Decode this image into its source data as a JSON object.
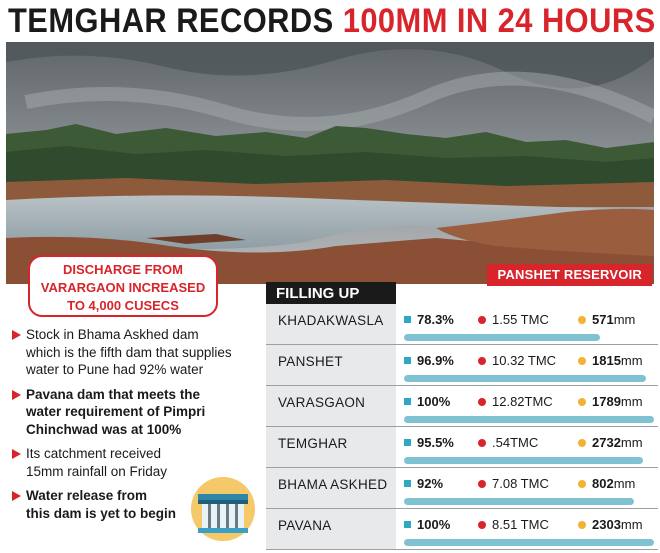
{
  "headline": {
    "part1": "TEMGHAR RECORDS",
    "part2": "100MM IN 24 HOURS"
  },
  "photo_caption": "PANSHET RESERVOIR",
  "callout": {
    "lines": [
      "DISCHARGE FROM",
      "VARARGAON INCREASED",
      "TO 4,000 CUSECS"
    ]
  },
  "bullets": [
    {
      "bold": false,
      "lines": [
        "Stock in Bhama Askhed dam",
        "which is the fifth dam that supplies",
        "water to Pune had 92% water"
      ]
    },
    {
      "bold": true,
      "lines": [
        "Pavana dam that meets the",
        "water requirement of Pimpri",
        "Chinchwad was at 100%"
      ]
    },
    {
      "bold": false,
      "lines": [
        "Its catchment received",
        "15mm rainfall on Friday"
      ]
    },
    {
      "bold": true,
      "lines": [
        "Water release from",
        "this dam is yet to begin"
      ]
    }
  ],
  "table": {
    "title": "FILLING UP",
    "rows": [
      {
        "name": "KHADAKWASLA",
        "percent": "78.3%",
        "percent_value": 78.3,
        "tmc": "1.55 TMC",
        "mm_value": "571",
        "mm_unit": "mm"
      },
      {
        "name": "PANSHET",
        "percent": "96.9%",
        "percent_value": 96.9,
        "tmc": "10.32 TMC",
        "mm_value": "1815",
        "mm_unit": "mm"
      },
      {
        "name": "VARASGAON",
        "percent": "100%",
        "percent_value": 100,
        "tmc": "12.82TMC",
        "mm_value": "1789",
        "mm_unit": "mm"
      },
      {
        "name": "TEMGHAR",
        "percent": "95.5%",
        "percent_value": 95.5,
        "tmc": ".54TMC",
        "mm_value": "2732",
        "mm_unit": "mm"
      },
      {
        "name": "BHAMA ASKHED",
        "percent": "92%",
        "percent_value": 92,
        "tmc": "7.08 TMC",
        "mm_value": "802",
        "mm_unit": "mm"
      },
      {
        "name": "PAVANA",
        "percent": "100%",
        "percent_value": 100,
        "tmc": "8.51 TMC",
        "mm_value": "2303",
        "mm_unit": "mm"
      }
    ]
  },
  "colors": {
    "accent_red": "#d8242b",
    "bar_blue": "#7fc3d3",
    "square_blue": "#2ea7c4",
    "dot_yellow": "#f2b233"
  }
}
